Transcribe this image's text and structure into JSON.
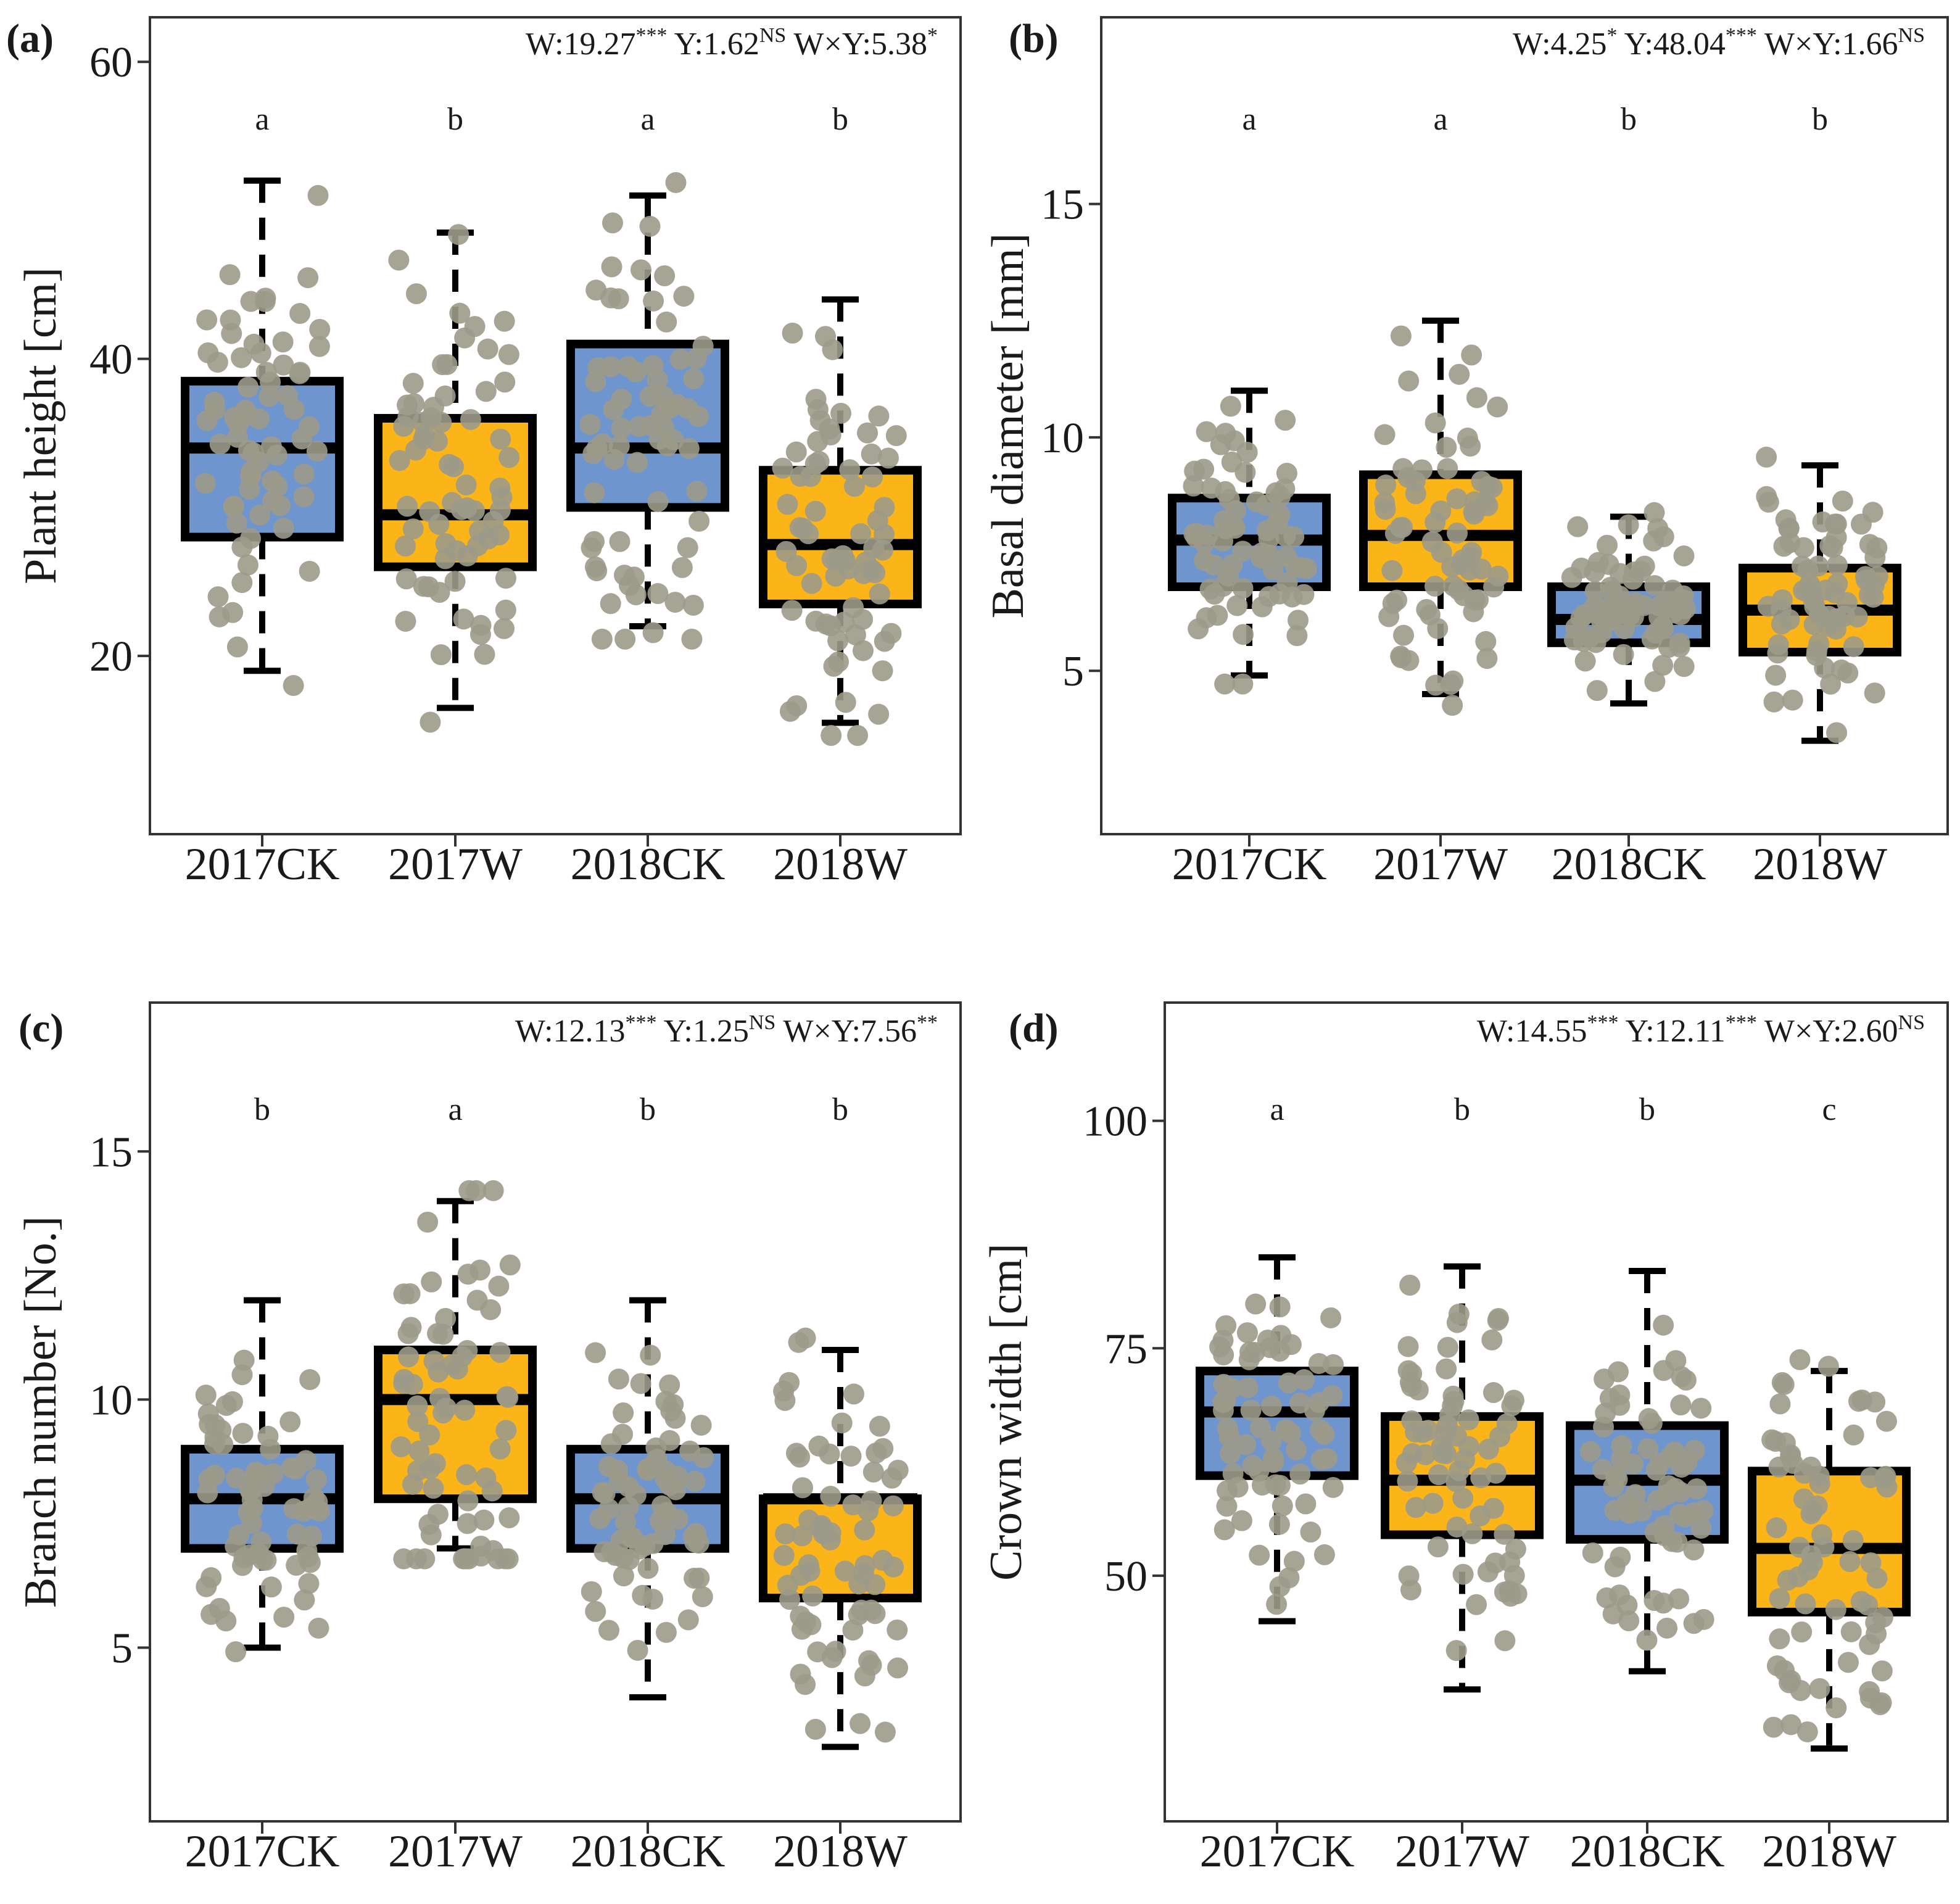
{
  "colors": {
    "ck_fill": "#6f95cf",
    "w_fill": "#fbb518",
    "point": "#9c9a8a",
    "box_line": "#000000",
    "frame": "#333333"
  },
  "chart_data": [
    {
      "type": "box",
      "panel_label": "(a)",
      "ylabel": "Plant height [cm]",
      "ylim": [
        8,
        63
      ],
      "yticks": [
        20,
        40,
        60
      ],
      "categories": [
        "2017CK",
        "2017W",
        "2018CK",
        "2018W"
      ],
      "fill_groups": [
        "CK",
        "W",
        "CK",
        "W"
      ],
      "stats": [
        {
          "text": "W:19.27",
          "sup": "***"
        },
        {
          "text": " Y:1.62",
          "sup": "NS"
        },
        {
          "text": " W×Y:5.38",
          "sup": "*"
        }
      ],
      "letters": [
        "a",
        "b",
        "a",
        "b"
      ],
      "boxes": [
        {
          "low": 19,
          "q1": 28,
          "median": 34,
          "q3": 38.5,
          "high": 52
        },
        {
          "low": 16.5,
          "q1": 26,
          "median": 29.5,
          "q3": 36,
          "high": 48.5
        },
        {
          "low": 22,
          "q1": 30,
          "median": 34,
          "q3": 41,
          "high": 51
        },
        {
          "low": 15.5,
          "q1": 23.5,
          "median": 27.5,
          "q3": 32.5,
          "high": 44
        }
      ]
    },
    {
      "type": "box",
      "panel_label": "(b)",
      "ylabel": "Basal diameter [mm]",
      "ylim": [
        1.5,
        19
      ],
      "yticks": [
        5,
        10,
        15
      ],
      "categories": [
        "2017CK",
        "2017W",
        "2018CK",
        "2018W"
      ],
      "fill_groups": [
        "CK",
        "W",
        "CK",
        "W"
      ],
      "stats": [
        {
          "text": "W:4.25",
          "sup": "*"
        },
        {
          "text": " Y:48.04",
          "sup": "***"
        },
        {
          "text": " W×Y:1.66",
          "sup": "NS"
        }
      ],
      "letters": [
        "a",
        "a",
        "b",
        "b"
      ],
      "boxes": [
        {
          "low": 4.9,
          "q1": 6.8,
          "median": 7.8,
          "q3": 8.7,
          "high": 11
        },
        {
          "low": 4.5,
          "q1": 6.8,
          "median": 7.9,
          "q3": 9.2,
          "high": 12.5
        },
        {
          "low": 4.3,
          "q1": 5.6,
          "median": 6.1,
          "q3": 6.8,
          "high": 8.3
        },
        {
          "low": 3.5,
          "q1": 5.4,
          "median": 6.3,
          "q3": 7.2,
          "high": 9.4
        }
      ]
    },
    {
      "type": "box",
      "panel_label": "(c)",
      "ylabel": "Branch number [No.]",
      "ylim": [
        1.5,
        18
      ],
      "yticks": [
        5,
        10,
        15
      ],
      "categories": [
        "2017CK",
        "2017W",
        "2018CK",
        "2018W"
      ],
      "fill_groups": [
        "CK",
        "W",
        "CK",
        "W"
      ],
      "stats": [
        {
          "text": "W:12.13",
          "sup": "***"
        },
        {
          "text": " Y:1.25",
          "sup": "NS"
        },
        {
          "text": " W×Y:7.56",
          "sup": "**"
        }
      ],
      "letters": [
        "b",
        "a",
        "b",
        "b"
      ],
      "boxes": [
        {
          "low": 5,
          "q1": 7,
          "median": 8,
          "q3": 9,
          "high": 12
        },
        {
          "low": 7,
          "q1": 8,
          "median": 10,
          "q3": 11,
          "high": 14
        },
        {
          "low": 4,
          "q1": 7,
          "median": 8,
          "q3": 9,
          "high": 12
        },
        {
          "low": 3,
          "q1": 6,
          "median": 8,
          "q3": 8,
          "high": 11
        }
      ]
    },
    {
      "type": "box",
      "panel_label": "(d)",
      "ylabel": "Crown width [cm]",
      "ylim": [
        23,
        113
      ],
      "yticks": [
        50,
        75,
        100
      ],
      "categories": [
        "2017CK",
        "2017W",
        "2018CK",
        "2018W"
      ],
      "fill_groups": [
        "CK",
        "W",
        "CK",
        "W"
      ],
      "stats": [
        {
          "text": "W:14.55",
          "sup": "***"
        },
        {
          "text": " Y:12.11",
          "sup": "***"
        },
        {
          "text": " W×Y:2.60",
          "sup": "NS"
        }
      ],
      "letters": [
        "a",
        "b",
        "b",
        "c"
      ],
      "boxes": [
        {
          "low": 45,
          "q1": 61,
          "median": 68,
          "q3": 72.5,
          "high": 85
        },
        {
          "low": 37.5,
          "q1": 54.5,
          "median": 60.5,
          "q3": 67.5,
          "high": 84
        },
        {
          "low": 39.5,
          "q1": 54,
          "median": 60.5,
          "q3": 66.5,
          "high": 83.5
        },
        {
          "low": 31,
          "q1": 46,
          "median": 53,
          "q3": 61.5,
          "high": 72.5
        }
      ]
    }
  ]
}
